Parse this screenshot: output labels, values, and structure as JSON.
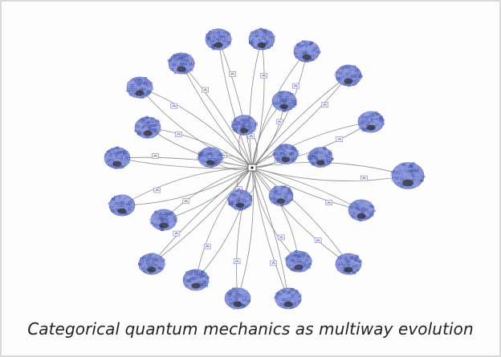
{
  "caption": "Categorical quantum mechanics as multiway evolution",
  "graph": {
    "node_fill": "#6f7fcf",
    "node_edge": "#4a58a8",
    "node_dark": "#2a2a2a",
    "edge_color": "#7a7a7a",
    "label_box_fill": "#f3f4ff",
    "label_box_stroke": "#7b86c9",
    "outer_node_count": 24,
    "inner_node_count": 7
  }
}
